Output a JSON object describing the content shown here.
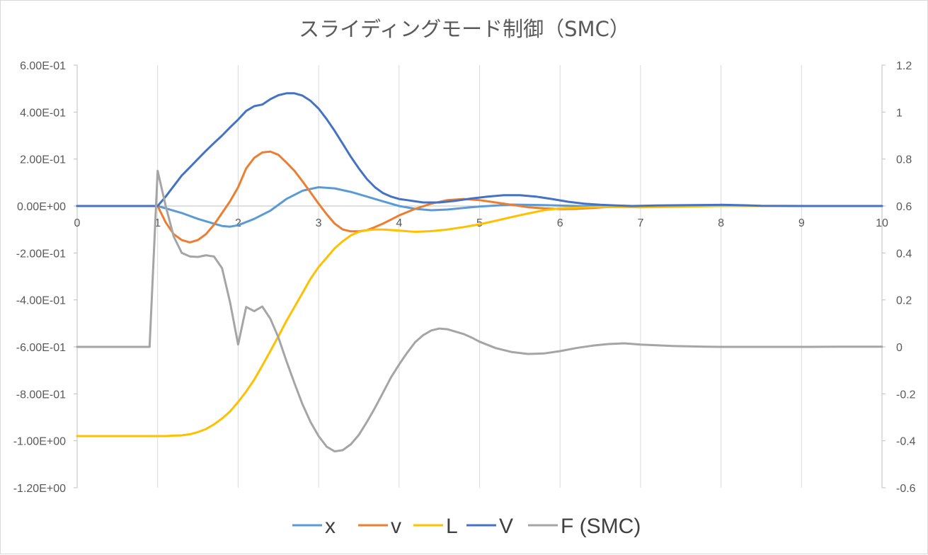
{
  "chart_data": {
    "type": "line",
    "title": "スライディングモード制御（SMC）",
    "x_axis": {
      "range": [
        0,
        10
      ],
      "ticks": [
        0,
        1,
        2,
        3,
        4,
        5,
        6,
        7,
        8,
        9,
        10
      ],
      "tick_labels": [
        "0",
        "1",
        "2",
        "3",
        "4",
        "5",
        "6",
        "7",
        "8",
        "9",
        "10"
      ]
    },
    "y_axis_left": {
      "range": [
        -1.2,
        0.6
      ],
      "ticks": [
        0.6,
        0.4,
        0.2,
        0.0,
        -0.2,
        -0.4,
        -0.6,
        -0.8,
        -1.0,
        -1.2
      ],
      "tick_labels": [
        "6.00E-01",
        "4.00E-01",
        "2.00E-01",
        "0.00E+00",
        "-2.00E-01",
        "-4.00E-01",
        "-6.00E-01",
        "-8.00E-01",
        "-1.00E+00",
        "-1.20E+00"
      ]
    },
    "y_axis_right": {
      "range": [
        -0.6,
        1.2
      ],
      "ticks": [
        1.2,
        1.0,
        0.8,
        0.6,
        0.4,
        0.2,
        0.0,
        -0.2,
        -0.4,
        -0.6
      ],
      "tick_labels": [
        "1.2",
        "1",
        "0.8",
        "0.6",
        "0.4",
        "0.2",
        "0",
        "-0.2",
        "-0.4",
        "-0.6"
      ]
    },
    "grid": "vertical",
    "legend_position": "bottom",
    "series": [
      {
        "name": "x",
        "axis": "left",
        "color": "#5B9BD5",
        "x": [
          0,
          1,
          1.1,
          1.3,
          1.5,
          1.7,
          1.8,
          1.9,
          2.0,
          2.2,
          2.4,
          2.6,
          2.8,
          3.0,
          3.2,
          3.4,
          3.6,
          3.8,
          4.0,
          4.2,
          4.4,
          4.6,
          4.8,
          5.0,
          5.4,
          5.8,
          6.2,
          6.6,
          7.0,
          8.0,
          9.0,
          10.0
        ],
        "values": [
          0,
          0,
          -0.01,
          -0.03,
          -0.055,
          -0.075,
          -0.085,
          -0.088,
          -0.082,
          -0.055,
          -0.02,
          0.03,
          0.065,
          0.08,
          0.075,
          0.06,
          0.04,
          0.02,
          0,
          -0.012,
          -0.018,
          -0.015,
          -0.008,
          -0.002,
          0.006,
          0.004,
          0,
          -0.002,
          0,
          0,
          0,
          0
        ]
      },
      {
        "name": "v",
        "axis": "left",
        "color": "#ED7D31",
        "x": [
          0,
          1,
          1.1,
          1.2,
          1.3,
          1.4,
          1.5,
          1.6,
          1.7,
          1.8,
          1.9,
          2.0,
          2.1,
          2.2,
          2.3,
          2.4,
          2.5,
          2.6,
          2.7,
          2.8,
          2.9,
          3.0,
          3.1,
          3.2,
          3.3,
          3.4,
          3.5,
          3.6,
          3.7,
          3.8,
          3.9,
          4.0,
          4.2,
          4.4,
          4.6,
          4.8,
          5.0,
          5.2,
          5.4,
          5.6,
          5.8,
          6.0,
          6.2,
          6.4,
          6.6,
          7.0,
          8.0,
          9.0,
          10.0
        ],
        "values": [
          0,
          0,
          -0.07,
          -0.12,
          -0.145,
          -0.155,
          -0.145,
          -0.12,
          -0.08,
          -0.03,
          0.02,
          0.08,
          0.16,
          0.205,
          0.228,
          0.232,
          0.218,
          0.185,
          0.15,
          0.105,
          0.058,
          0.01,
          -0.035,
          -0.075,
          -0.1,
          -0.108,
          -0.108,
          -0.103,
          -0.09,
          -0.075,
          -0.058,
          -0.04,
          -0.012,
          0.01,
          0.025,
          0.03,
          0.025,
          0.015,
          0.005,
          -0.005,
          -0.01,
          -0.013,
          -0.012,
          -0.008,
          -0.004,
          0,
          0,
          0,
          0
        ]
      },
      {
        "name": "L",
        "axis": "right",
        "color": "#FFC000",
        "x": [
          0,
          1,
          1.1,
          1.2,
          1.3,
          1.4,
          1.5,
          1.6,
          1.7,
          1.8,
          1.9,
          2.0,
          2.1,
          2.2,
          2.3,
          2.4,
          2.5,
          2.6,
          2.7,
          2.8,
          2.9,
          3.0,
          3.1,
          3.2,
          3.3,
          3.4,
          3.5,
          3.6,
          3.7,
          3.8,
          4.0,
          4.2,
          4.4,
          4.6,
          4.8,
          5.0,
          5.2,
          5.4,
          5.6,
          5.8,
          6.0,
          6.5,
          7.0,
          7.5,
          8.0,
          9.0,
          10.0
        ],
        "values": [
          -0.38,
          -0.38,
          -0.38,
          -0.378,
          -0.377,
          -0.372,
          -0.363,
          -0.35,
          -0.33,
          -0.305,
          -0.275,
          -0.235,
          -0.19,
          -0.14,
          -0.08,
          -0.018,
          0.045,
          0.11,
          0.17,
          0.23,
          0.29,
          0.34,
          0.38,
          0.42,
          0.45,
          0.475,
          0.49,
          0.497,
          0.5,
          0.5,
          0.495,
          0.49,
          0.493,
          0.5,
          0.51,
          0.522,
          0.537,
          0.553,
          0.568,
          0.582,
          0.59,
          0.596,
          0.595,
          0.597,
          0.6,
          0.6,
          0.6
        ]
      },
      {
        "name": "V",
        "axis": "left",
        "color": "#4472C4",
        "x": [
          0,
          1,
          1.1,
          1.2,
          1.3,
          1.4,
          1.5,
          1.6,
          1.7,
          1.8,
          1.9,
          2.0,
          2.1,
          2.2,
          2.3,
          2.4,
          2.5,
          2.6,
          2.7,
          2.8,
          2.9,
          3.0,
          3.1,
          3.2,
          3.3,
          3.4,
          3.5,
          3.6,
          3.7,
          3.8,
          3.9,
          4.0,
          4.1,
          4.2,
          4.3,
          4.5,
          4.7,
          4.9,
          5.1,
          5.3,
          5.5,
          5.7,
          5.9,
          6.1,
          6.3,
          6.5,
          6.7,
          6.9,
          7.2,
          7.6,
          8.0,
          8.3,
          8.5,
          9.0,
          10.0
        ],
        "values": [
          0,
          0,
          0.04,
          0.085,
          0.13,
          0.165,
          0.2,
          0.235,
          0.268,
          0.3,
          0.335,
          0.368,
          0.405,
          0.425,
          0.432,
          0.455,
          0.472,
          0.48,
          0.48,
          0.47,
          0.448,
          0.415,
          0.37,
          0.32,
          0.265,
          0.21,
          0.16,
          0.115,
          0.08,
          0.055,
          0.04,
          0.03,
          0.025,
          0.02,
          0.015,
          0.015,
          0.022,
          0.032,
          0.04,
          0.046,
          0.046,
          0.04,
          0.03,
          0.018,
          0.01,
          0.005,
          0.002,
          0,
          0.002,
          0.004,
          0.005,
          0.003,
          0.001,
          0,
          0
        ]
      },
      {
        "name": "F (SMC)",
        "axis": "right",
        "color": "#A5A5A5",
        "x": [
          0,
          0.9,
          1.0,
          1.1,
          1.2,
          1.3,
          1.4,
          1.5,
          1.6,
          1.7,
          1.8,
          1.9,
          2.0,
          2.1,
          2.2,
          2.3,
          2.4,
          2.5,
          2.6,
          2.7,
          2.8,
          2.9,
          3.0,
          3.1,
          3.2,
          3.3,
          3.4,
          3.5,
          3.6,
          3.7,
          3.8,
          3.9,
          4.0,
          4.1,
          4.2,
          4.3,
          4.4,
          4.5,
          4.6,
          4.7,
          4.8,
          4.9,
          5.0,
          5.2,
          5.4,
          5.6,
          5.8,
          6.0,
          6.2,
          6.4,
          6.6,
          6.8,
          7.0,
          7.2,
          7.4,
          7.6,
          7.8,
          8.0,
          8.5,
          9.0,
          9.5,
          10.0
        ],
        "values": [
          0,
          0,
          0.75,
          0.6,
          0.47,
          0.4,
          0.385,
          0.383,
          0.39,
          0.385,
          0.335,
          0.19,
          0.01,
          0.17,
          0.152,
          0.172,
          0.12,
          0.04,
          -0.06,
          -0.155,
          -0.245,
          -0.32,
          -0.38,
          -0.425,
          -0.445,
          -0.44,
          -0.415,
          -0.375,
          -0.32,
          -0.26,
          -0.195,
          -0.13,
          -0.075,
          -0.025,
          0.02,
          0.05,
          0.07,
          0.078,
          0.075,
          0.065,
          0.055,
          0.04,
          0.022,
          -0.005,
          -0.022,
          -0.03,
          -0.028,
          -0.018,
          -0.005,
          0.005,
          0.012,
          0.015,
          0.01,
          0.007,
          0.004,
          0.002,
          0.001,
          0,
          0,
          0,
          0.001,
          0.001
        ]
      }
    ]
  }
}
